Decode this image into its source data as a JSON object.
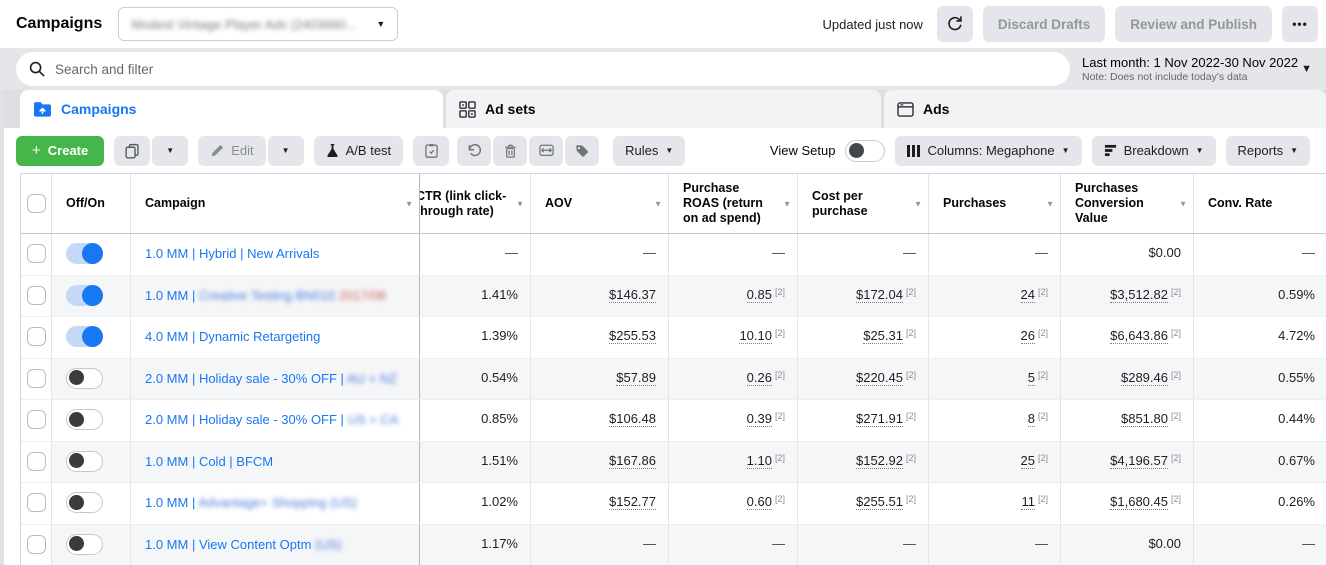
{
  "colors": {
    "accent_blue": "#1877f2",
    "create_green": "#45b649",
    "toggle_off_knob": "#3a3b3c",
    "toolbar_grey": "#e4e6eb",
    "stripe_grey": "#f5f6f8",
    "blur_red": "#c0544a"
  },
  "icons": {
    "caret_down": "▼",
    "plus": "+",
    "more": "•••"
  },
  "header": {
    "title": "Campaigns",
    "account_name_blurred": "Modest Vintage Player Ads (2403660...",
    "updated_text": "Updated just now",
    "discard_label": "Discard Drafts",
    "review_label": "Review and Publish"
  },
  "search": {
    "placeholder": "Search and filter"
  },
  "date_range": {
    "label": "Last month: 1 Nov 2022-30 Nov 2022",
    "note": "Note: Does not include today's data"
  },
  "tabs": {
    "campaigns": "Campaigns",
    "adsets": "Ad sets",
    "ads": "Ads"
  },
  "toolbar": {
    "create_label": "Create",
    "edit_label": "Edit",
    "ab_test_label": "A/B test",
    "rules_label": "Rules",
    "view_setup_label": "View Setup",
    "columns_label": "Columns: Megaphone",
    "breakdown_label": "Breakdown",
    "reports_label": "Reports"
  },
  "table": {
    "sup": "[2]",
    "columns": [
      "Off/On",
      "Campaign",
      "CTR (link click-through rate)",
      "AOV",
      "Purchase ROAS (return on ad spend)",
      "Cost per purchase",
      "Purchases",
      "Purchases Conversion Value",
      "Conv. Rate"
    ],
    "rows": [
      {
        "on": true,
        "name": [
          {
            "t": "1.0 MM | Hybrid | New Arrivals"
          }
        ],
        "metrics": [
          {
            "v": "—"
          },
          {
            "v": "—"
          },
          {
            "v": "—"
          },
          {
            "v": "—"
          },
          {
            "v": "—"
          },
          {
            "v": "$0.00"
          },
          {
            "v": "—"
          }
        ]
      },
      {
        "on": true,
        "name": [
          {
            "t": "1.0 MM | "
          },
          {
            "t": "Creative Testing BN010 ",
            "blur": "blue"
          },
          {
            "t": "2017/08",
            "blur": "red"
          }
        ],
        "metrics": [
          {
            "v": "1.41%"
          },
          {
            "v": "$146.37",
            "dot": true
          },
          {
            "v": "0.85",
            "dot": true,
            "sup": true
          },
          {
            "v": "$172.04",
            "dot": true,
            "sup": true
          },
          {
            "v": "24",
            "dot": true,
            "sup": true
          },
          {
            "v": "$3,512.82",
            "dot": true,
            "sup": true
          },
          {
            "v": "0.59%"
          }
        ]
      },
      {
        "on": true,
        "name": [
          {
            "t": "4.0 MM | Dynamic Retargeting"
          }
        ],
        "metrics": [
          {
            "v": "1.39%"
          },
          {
            "v": "$255.53",
            "dot": true
          },
          {
            "v": "10.10",
            "dot": true,
            "sup": true
          },
          {
            "v": "$25.31",
            "dot": true,
            "sup": true
          },
          {
            "v": "26",
            "dot": true,
            "sup": true
          },
          {
            "v": "$6,643.86",
            "dot": true,
            "sup": true
          },
          {
            "v": "4.72%"
          }
        ]
      },
      {
        "on": false,
        "name": [
          {
            "t": "2.0 MM | Holiday sale - 30% OFF | "
          },
          {
            "t": "AU + NZ",
            "blur": "blue"
          }
        ],
        "metrics": [
          {
            "v": "0.54%"
          },
          {
            "v": "$57.89",
            "dot": true
          },
          {
            "v": "0.26",
            "dot": true,
            "sup": true
          },
          {
            "v": "$220.45",
            "dot": true,
            "sup": true
          },
          {
            "v": "5",
            "dot": true,
            "sup": true
          },
          {
            "v": "$289.46",
            "dot": true,
            "sup": true
          },
          {
            "v": "0.55%"
          }
        ]
      },
      {
        "on": false,
        "name": [
          {
            "t": "2.0 MM | Holiday sale - 30% OFF | "
          },
          {
            "t": "US + CA",
            "blur": "blue"
          }
        ],
        "metrics": [
          {
            "v": "0.85%"
          },
          {
            "v": "$106.48",
            "dot": true
          },
          {
            "v": "0.39",
            "dot": true,
            "sup": true
          },
          {
            "v": "$271.91",
            "dot": true,
            "sup": true
          },
          {
            "v": "8",
            "dot": true,
            "sup": true
          },
          {
            "v": "$851.80",
            "dot": true,
            "sup": true
          },
          {
            "v": "0.44%"
          }
        ]
      },
      {
        "on": false,
        "name": [
          {
            "t": "1.0 MM | Cold | BFCM"
          }
        ],
        "metrics": [
          {
            "v": "1.51%"
          },
          {
            "v": "$167.86",
            "dot": true
          },
          {
            "v": "1.10",
            "dot": true,
            "sup": true
          },
          {
            "v": "$152.92",
            "dot": true,
            "sup": true
          },
          {
            "v": "25",
            "dot": true,
            "sup": true
          },
          {
            "v": "$4,196.57",
            "dot": true,
            "sup": true
          },
          {
            "v": "0.67%"
          }
        ]
      },
      {
        "on": false,
        "name": [
          {
            "t": "1.0 MM | "
          },
          {
            "t": "Advantage+ Shopping (US)",
            "blur": "blue"
          }
        ],
        "metrics": [
          {
            "v": "1.02%"
          },
          {
            "v": "$152.77",
            "dot": true
          },
          {
            "v": "0.60",
            "dot": true,
            "sup": true
          },
          {
            "v": "$255.51",
            "dot": true,
            "sup": true
          },
          {
            "v": "11",
            "dot": true,
            "sup": true
          },
          {
            "v": "$1,680.45",
            "dot": true,
            "sup": true
          },
          {
            "v": "0.26%"
          }
        ]
      },
      {
        "on": false,
        "name": [
          {
            "t": "1.0 MM | View Content Optm "
          },
          {
            "t": "(US)",
            "blur": "blue"
          }
        ],
        "metrics": [
          {
            "v": "1.17%"
          },
          {
            "v": "—"
          },
          {
            "v": "—"
          },
          {
            "v": "—"
          },
          {
            "v": "—"
          },
          {
            "v": "$0.00"
          },
          {
            "v": "—"
          }
        ]
      }
    ]
  }
}
